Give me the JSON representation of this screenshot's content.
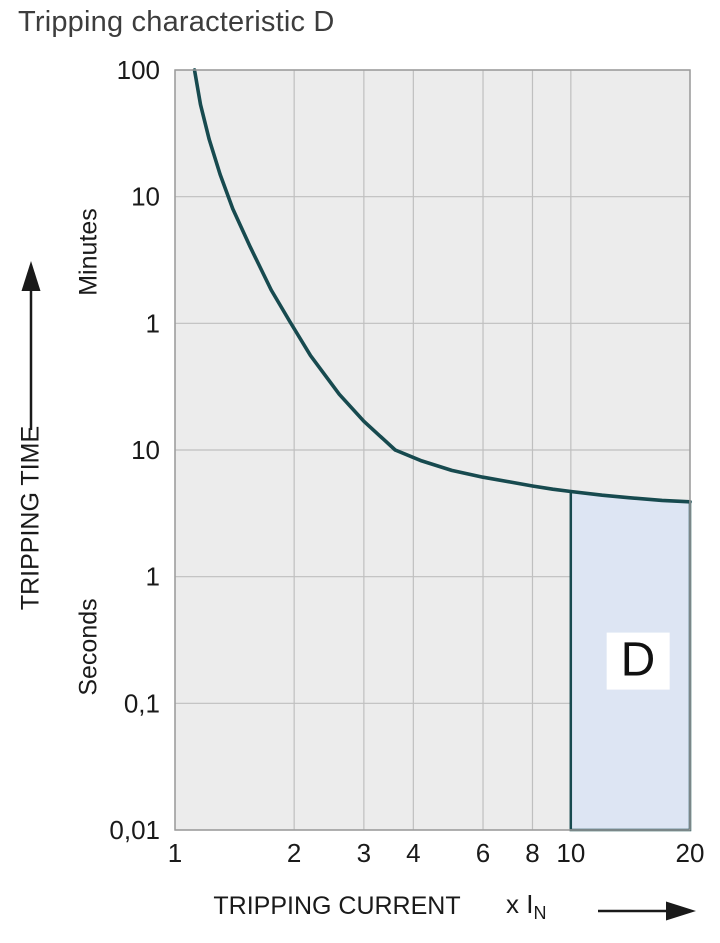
{
  "title": "Tripping characteristic D",
  "colors": {
    "curve": "#174a4f",
    "region_fill": "#dde5f3",
    "plot_bg": "#ececec",
    "grid": "#bfbfbf",
    "plot_border": "#9b9b9b",
    "text": "#1a1a1a"
  },
  "y_axis": {
    "label": "TRIPPING TIME",
    "unit_top": "Minutes",
    "unit_bottom": "Seconds",
    "tick_labels_top_to_bottom": [
      "100",
      "10",
      "1",
      "10",
      "1",
      "0,1",
      "0,01"
    ]
  },
  "x_axis": {
    "label": "TRIPPING CURRENT",
    "unit": "x I",
    "unit_sub": "N",
    "ticks": [
      1,
      2,
      3,
      4,
      6,
      8,
      10,
      20
    ],
    "tick_labels": [
      "1",
      "2",
      "3",
      "4",
      "6",
      "8",
      "10",
      "20"
    ]
  },
  "region_label": "D",
  "chart_data": {
    "type": "line",
    "title": "Tripping characteristic D",
    "xlabel": "TRIPPING CURRENT (x IN)",
    "ylabel": "TRIPPING TIME",
    "x_scale": "log",
    "x_range": [
      1,
      20
    ],
    "y_scale": "piecewise-log (seconds 0.01-10, then minutes 1-100, equal decade spacing)",
    "y_gridline_values_seconds_top_to_bottom": [
      6000,
      600,
      60,
      10,
      1,
      0.1,
      0.01
    ],
    "grid": true,
    "curve_points_x_vs_seconds": [
      [
        1.12,
        6000
      ],
      [
        1.16,
        3200
      ],
      [
        1.22,
        1700
      ],
      [
        1.3,
        900
      ],
      [
        1.4,
        480
      ],
      [
        1.55,
        240
      ],
      [
        1.75,
        110
      ],
      [
        1.95,
        62
      ],
      [
        2.2,
        38
      ],
      [
        2.6,
        22
      ],
      [
        3.0,
        15
      ],
      [
        3.6,
        10
      ],
      [
        4.2,
        8.2
      ],
      [
        5.0,
        6.9
      ],
      [
        6.0,
        6.1
      ],
      [
        7.0,
        5.6
      ],
      [
        8.0,
        5.2
      ],
      [
        9.0,
        4.9
      ],
      [
        10.0,
        4.7
      ],
      [
        12.0,
        4.4
      ],
      [
        14.0,
        4.2
      ],
      [
        17.0,
        4.0
      ],
      [
        20.0,
        3.9
      ]
    ],
    "region": {
      "label": "D",
      "x_from": 10,
      "x_to": 20,
      "y_bottom_seconds": 0.01,
      "top_follows_curve": true
    }
  }
}
